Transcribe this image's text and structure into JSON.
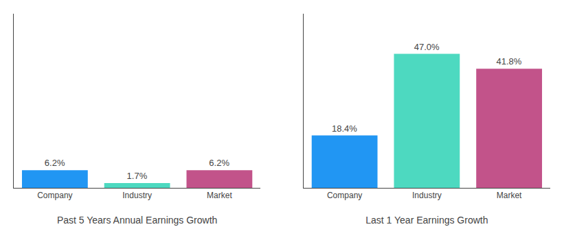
{
  "chart_data": [
    {
      "type": "bar",
      "xlabel": "Past 5 Years Annual Earnings Growth",
      "categories": [
        "Company",
        "Industry",
        "Market"
      ],
      "values": [
        6.2,
        1.7,
        6.2
      ],
      "value_labels": [
        "6.2%",
        "1.7%",
        "6.2%"
      ],
      "colors": [
        "#2196f3",
        "#4dd9c0",
        "#c2538a"
      ],
      "ylim": [
        0,
        61.1
      ],
      "yticks": [],
      "data_labels": true,
      "tick_labels": "x",
      "grid": false
    },
    {
      "type": "bar",
      "xlabel": "Last 1 Year Earnings Growth",
      "categories": [
        "Company",
        "Industry",
        "Market"
      ],
      "values": [
        18.4,
        47.0,
        41.8
      ],
      "value_labels": [
        "18.4%",
        "47.0%",
        "41.8%"
      ],
      "colors": [
        "#2196f3",
        "#4dd9c0",
        "#c2538a"
      ],
      "ylim": [
        0,
        61.1
      ],
      "yticks": [],
      "data_labels": true,
      "tick_labels": "x",
      "grid": false
    }
  ]
}
